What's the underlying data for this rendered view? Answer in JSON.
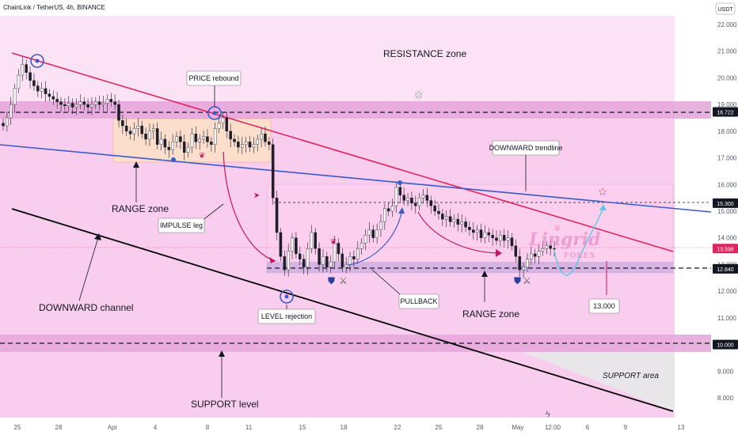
{
  "header": {
    "title": "ChainLink / TetherUS, 4h, BINANCE",
    "currency": "USDT"
  },
  "watermark": {
    "brand": "Lingrid",
    "sub": "FOREX"
  },
  "colors": {
    "up": "#26a69a",
    "down": "#ef5350",
    "candle_body": "#1e1e2a",
    "zone_fill": "#f3b5e6",
    "range_fill": "#fde1c8",
    "resistance_band": "#e3a9d9",
    "support_band": "#e3a9d9",
    "channel_upper": "#e0245e",
    "trendline": "#3a5bc7",
    "channel_lower": "#000000",
    "price_tag_bg": "#131722",
    "current_price_bg": "#e0245e",
    "last_price_bg": "#1e3a8a"
  },
  "chart_data": {
    "type": "candlestick",
    "symbol": "LINKUSDT",
    "interval": "4h",
    "exchange": "BINANCE",
    "ylim": [
      7.5,
      22.5
    ],
    "y_ticks": [
      "22.000",
      "21.000",
      "20.000",
      "19.000",
      "18.000",
      "17.000",
      "16.000",
      "15.000",
      "14.000",
      "13.000",
      "12.000",
      "11.000",
      "10.000",
      "9.000",
      "8.000"
    ],
    "x_ticks": [
      "25",
      "28",
      "Apr",
      "4",
      "8",
      "11",
      "15",
      "18",
      "22",
      "25",
      "28",
      "May",
      "12:00",
      "6",
      "9",
      "13"
    ],
    "price_tags": [
      {
        "value": "18.722",
        "style": "dark"
      },
      {
        "value": "15.300",
        "style": "dark"
      },
      {
        "value": "13.598",
        "style": "current"
      },
      {
        "value": "12.840",
        "style": "dark"
      },
      {
        "value": "10.000",
        "style": "dark"
      }
    ],
    "annotations": {
      "resistance": "RESISTANCE zone",
      "price_rebound": "PRICE rebound",
      "range_1": "RANGE zone",
      "impulse": "IMPULSE leg",
      "downward_trendline": "DOWNWARD trendline",
      "downward_channel": "DOWNWARD channel",
      "level_rejection": "LEVEL rejection",
      "pullback": "PULLBACK",
      "range_2": "RANGE zone",
      "target": "13.000",
      "support_area": "SUPPORT area",
      "support_level": "SUPPORT level"
    },
    "levels": {
      "resistance": 18.722,
      "range_top": 15.3,
      "range_bottom": 12.84,
      "support": 10.0,
      "current": 13.598
    },
    "candles_close": [
      18.2,
      18.5,
      19.0,
      19.6,
      20.1,
      20.5,
      20.2,
      19.9,
      19.7,
      19.5,
      19.6,
      19.4,
      19.3,
      19.2,
      19.1,
      19.0,
      18.95,
      19.05,
      18.9,
      19.0,
      19.1,
      19.0,
      18.9,
      19.0,
      19.1,
      19.0,
      19.05,
      19.2,
      19.1,
      19.0,
      18.4,
      18.2,
      18.0,
      17.9,
      18.1,
      18.2,
      17.9,
      17.7,
      18.0,
      18.1,
      17.5,
      17.7,
      17.4,
      17.3,
      17.6,
      17.8,
      17.6,
      17.2,
      17.4,
      17.9,
      17.6,
      17.7,
      17.8,
      17.6,
      17.5,
      18.1,
      18.3,
      18.5,
      18.0,
      17.7,
      17.6,
      17.4,
      17.5,
      17.6,
      17.4,
      17.5,
      17.7,
      17.9,
      17.6,
      17.5,
      15.5,
      14.2,
      13.3,
      12.8,
      13.5,
      14.0,
      13.4,
      13.2,
      12.9,
      13.6,
      14.2,
      13.6,
      13.0,
      13.3,
      12.9,
      13.1,
      13.8,
      13.4,
      12.9,
      13.0,
      13.3,
      13.2,
      13.6,
      13.8,
      14.1,
      14.3,
      14.0,
      14.3,
      14.6,
      15.1,
      15.0,
      15.2,
      15.9,
      15.6,
      15.4,
      15.5,
      15.3,
      15.2,
      15.5,
      15.6,
      15.4,
      15.2,
      15.0,
      14.9,
      14.7,
      14.8,
      14.6,
      14.7,
      14.5,
      14.6,
      14.4,
      14.3,
      14.2,
      14.3,
      14.0,
      14.2,
      14.1,
      14.0,
      13.9,
      14.1,
      13.9,
      14.0,
      13.7,
      13.3,
      12.8,
      12.9,
      13.2,
      13.4,
      13.3,
      13.5,
      13.6,
      13.7,
      13.6,
      13.598
    ]
  }
}
